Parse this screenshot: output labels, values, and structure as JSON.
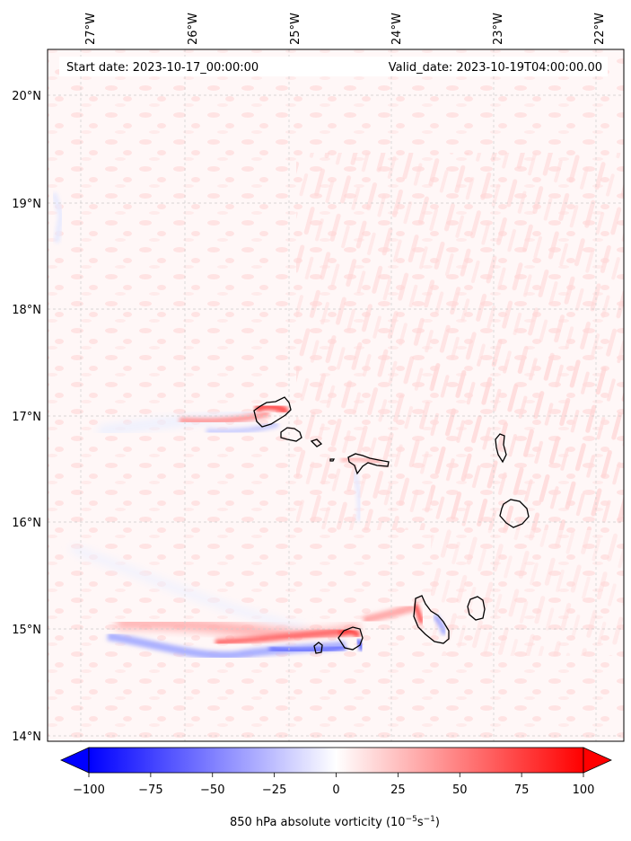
{
  "header": {
    "start_date": "Start date: 2023-10-17_00:00:00",
    "valid_date": "Valid_date: 2023-10-19T04:00:00.00"
  },
  "longitude_labels": [
    "27°W",
    "26°W",
    "25°W",
    "24°W",
    "23°W",
    "22°W"
  ],
  "latitude_labels": [
    "20°N",
    "19°N",
    "18°N",
    "17°N",
    "16°N",
    "15°N",
    "14°N"
  ],
  "colorbar": {
    "ticks": [
      -100,
      -75,
      -50,
      -25,
      0,
      25,
      50,
      75,
      100
    ],
    "tick_labels": [
      "−100",
      "−75",
      "−50",
      "−25",
      "0",
      "25",
      "50",
      "75",
      "100"
    ],
    "range": [
      -100,
      100
    ],
    "extend": "both",
    "label": "850 hPa absolute vorticity (10",
    "label_exp1": "−5",
    "label_mid": "s",
    "label_exp2": "−1",
    "label_end": ")",
    "colors": {
      "negative": "#0000ff",
      "zero": "#ffffff",
      "positive": "#ff0000"
    }
  },
  "chart_data": {
    "type": "heatmap",
    "field": "850 hPa absolute vorticity",
    "extent": {
      "lon": [
        -27.35,
        -21.85
      ],
      "lat": [
        13.95,
        20.45
      ]
    },
    "gridlines": true,
    "lon_ticks": [
      -27,
      -26,
      -25,
      -24,
      -23,
      -22
    ],
    "lat_ticks": [
      20,
      19,
      18,
      17,
      16,
      15,
      14
    ],
    "features": [
      {
        "name": "positive band north of Santo Antão",
        "lon": [
          -26.6,
          -25.1
        ],
        "lat": 17.0,
        "value": 40
      },
      {
        "name": "positive band south",
        "lon": [
          -26.2,
          -24.2
        ],
        "lat": 14.95,
        "value": 45
      },
      {
        "name": "negative band south",
        "lon": [
          -26.6,
          -24.3
        ],
        "lat": 14.83,
        "value": -45
      },
      {
        "name": "positive plume east of Fogo",
        "lon": [
          -24.3,
          -23.7
        ],
        "lat": 15.15,
        "value": 35
      }
    ],
    "islands": [
      {
        "name": "Santo Antão",
        "lon": -25.2,
        "lat": 17.05
      },
      {
        "name": "São Vicente",
        "lon": -25.0,
        "lat": 16.85
      },
      {
        "name": "Santa Luzia",
        "lon": -24.75,
        "lat": 16.76
      },
      {
        "name": "Branco",
        "lon": -24.67,
        "lat": 16.65
      },
      {
        "name": "São Nicolau",
        "lon": -24.2,
        "lat": 16.6
      },
      {
        "name": "Sal",
        "lon": -22.93,
        "lat": 16.73
      },
      {
        "name": "Boa Vista",
        "lon": -22.85,
        "lat": 16.1
      },
      {
        "name": "Maio",
        "lon": -23.18,
        "lat": 15.2
      },
      {
        "name": "Santiago",
        "lon": -23.6,
        "lat": 15.08
      },
      {
        "name": "Fogo",
        "lon": -24.38,
        "lat": 14.93
      },
      {
        "name": "Brava",
        "lon": -24.71,
        "lat": 14.85
      }
    ]
  }
}
